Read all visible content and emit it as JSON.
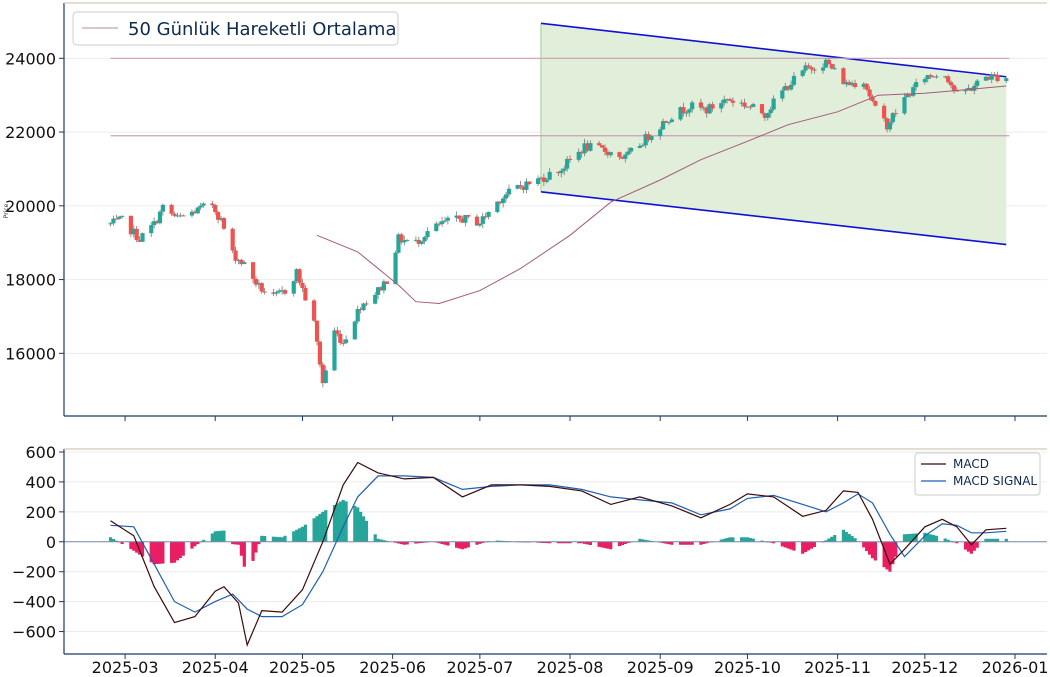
{
  "chart_data": [
    {
      "type": "candlestick",
      "ylabel": "Price",
      "ylim": [
        14300,
        25500
      ],
      "yticks": [
        16000,
        18000,
        20000,
        22000,
        24000
      ],
      "grid": true,
      "legend": {
        "position": "top-left",
        "entries": [
          "50 Günlük Hareketli Ortalama"
        ]
      },
      "colors": {
        "up": "#26a69a",
        "down": "#ef5350",
        "ma": "#a35a7a",
        "channel": "#1010d8",
        "channel_fill": "#e1efda",
        "hline": "#c9a0b4"
      },
      "horizontal_lines": [
        24000,
        21900
      ],
      "channel": {
        "upper": [
          [
            "2025-07-22",
            24950
          ],
          [
            "2025-12-29",
            23500
          ]
        ],
        "lower": [
          [
            "2025-07-22",
            20380
          ],
          [
            "2025-12-29",
            18950
          ]
        ]
      },
      "ohlc_anchors": [
        [
          "2025-02-24",
          19500
        ],
        [
          "2025-02-28",
          19600
        ],
        [
          "2025-03-06",
          19100
        ],
        [
          "2025-03-11",
          19500
        ],
        [
          "2025-03-14",
          19950
        ],
        [
          "2025-03-19",
          19650
        ],
        [
          "2025-03-25",
          19850
        ],
        [
          "2025-03-31",
          20050
        ],
        [
          "2025-04-03",
          19600
        ],
        [
          "2025-04-07",
          18700
        ],
        [
          "2025-04-11",
          18400
        ],
        [
          "2025-04-16",
          17800
        ],
        [
          "2025-04-21",
          17500
        ],
        [
          "2025-04-25",
          17700
        ],
        [
          "2025-04-29",
          18200
        ],
        [
          "2025-05-05",
          16800
        ],
        [
          "2025-05-08",
          15200
        ],
        [
          "2025-05-12",
          16600
        ],
        [
          "2025-05-15",
          16300
        ],
        [
          "2025-05-21",
          17300
        ],
        [
          "2025-05-27",
          17700
        ],
        [
          "2025-05-30",
          18000
        ],
        [
          "2025-06-03",
          19100
        ],
        [
          "2025-06-09",
          19000
        ],
        [
          "2025-06-13",
          19300
        ],
        [
          "2025-06-19",
          19550
        ],
        [
          "2025-06-25",
          19650
        ],
        [
          "2025-07-01",
          19550
        ],
        [
          "2025-07-08",
          20200
        ],
        [
          "2025-07-14",
          20500
        ],
        [
          "2025-07-21",
          20700
        ],
        [
          "2025-07-29",
          21000
        ],
        [
          "2025-08-06",
          21600
        ],
        [
          "2025-08-13",
          21500
        ],
        [
          "2025-08-20",
          21300
        ],
        [
          "2025-08-28",
          21900
        ],
        [
          "2025-09-04",
          22400
        ],
        [
          "2025-09-11",
          22700
        ],
        [
          "2025-09-17",
          22600
        ],
        [
          "2025-09-24",
          22900
        ],
        [
          "2025-09-30",
          22750
        ],
        [
          "2025-10-07",
          22500
        ],
        [
          "2025-10-14",
          23200
        ],
        [
          "2025-10-21",
          23700
        ],
        [
          "2025-10-28",
          23900
        ],
        [
          "2025-11-04",
          23300
        ],
        [
          "2025-11-10",
          23400
        ],
        [
          "2025-11-14",
          22600
        ],
        [
          "2025-11-18",
          22200
        ],
        [
          "2025-11-24",
          22900
        ],
        [
          "2025-12-01",
          23500
        ],
        [
          "2025-12-08",
          23600
        ],
        [
          "2025-12-12",
          23000
        ],
        [
          "2025-12-17",
          23200
        ],
        [
          "2025-12-22",
          23500
        ],
        [
          "2025-12-29",
          23500
        ]
      ],
      "ma50": [
        [
          "2025-05-06",
          19200
        ],
        [
          "2025-05-20",
          18750
        ],
        [
          "2025-06-03",
          17850
        ],
        [
          "2025-06-09",
          17400
        ],
        [
          "2025-06-17",
          17350
        ],
        [
          "2025-07-01",
          17700
        ],
        [
          "2025-07-15",
          18300
        ],
        [
          "2025-08-01",
          19200
        ],
        [
          "2025-08-15",
          20100
        ],
        [
          "2025-09-01",
          20700
        ],
        [
          "2025-09-15",
          21250
        ],
        [
          "2025-10-01",
          21750
        ],
        [
          "2025-10-15",
          22200
        ],
        [
          "2025-11-01",
          22550
        ],
        [
          "2025-11-15",
          23000
        ],
        [
          "2025-12-01",
          23050
        ],
        [
          "2025-12-15",
          23150
        ],
        [
          "2025-12-29",
          23250
        ]
      ]
    },
    {
      "type": "line",
      "ylim": [
        -750,
        620
      ],
      "yticks": [
        -600,
        -400,
        -200,
        0,
        200,
        400,
        600
      ],
      "grid": true,
      "legend": {
        "position": "top-right",
        "entries": [
          "MACD",
          "MACD SIGNAL"
        ]
      },
      "series": [
        {
          "name": "MACD",
          "color": "#3b0a0a",
          "points": [
            [
              "2025-02-24",
              140
            ],
            [
              "2025-03-04",
              40
            ],
            [
              "2025-03-11",
              -300
            ],
            [
              "2025-03-18",
              -540
            ],
            [
              "2025-03-25",
              -500
            ],
            [
              "2025-04-01",
              -330
            ],
            [
              "2025-04-04",
              -300
            ],
            [
              "2025-04-09",
              -410
            ],
            [
              "2025-04-12",
              -690
            ],
            [
              "2025-04-17",
              -460
            ],
            [
              "2025-04-24",
              -470
            ],
            [
              "2025-05-01",
              -320
            ],
            [
              "2025-05-08",
              0
            ],
            [
              "2025-05-15",
              380
            ],
            [
              "2025-05-20",
              530
            ],
            [
              "2025-05-27",
              460
            ],
            [
              "2025-06-05",
              420
            ],
            [
              "2025-06-15",
              430
            ],
            [
              "2025-06-25",
              300
            ],
            [
              "2025-07-05",
              380
            ],
            [
              "2025-07-15",
              380
            ],
            [
              "2025-07-25",
              370
            ],
            [
              "2025-08-05",
              340
            ],
            [
              "2025-08-15",
              250
            ],
            [
              "2025-08-25",
              300
            ],
            [
              "2025-09-05",
              240
            ],
            [
              "2025-09-15",
              160
            ],
            [
              "2025-09-25",
              250
            ],
            [
              "2025-10-01",
              320
            ],
            [
              "2025-10-10",
              300
            ],
            [
              "2025-10-20",
              170
            ],
            [
              "2025-10-28",
              210
            ],
            [
              "2025-11-03",
              340
            ],
            [
              "2025-11-08",
              330
            ],
            [
              "2025-11-13",
              150
            ],
            [
              "2025-11-19",
              -150
            ],
            [
              "2025-11-24",
              -50
            ],
            [
              "2025-12-01",
              100
            ],
            [
              "2025-12-07",
              150
            ],
            [
              "2025-12-12",
              100
            ],
            [
              "2025-12-17",
              -20
            ],
            [
              "2025-12-22",
              80
            ],
            [
              "2025-12-29",
              90
            ]
          ]
        },
        {
          "name": "MACD SIGNAL",
          "color": "#1f5fb4",
          "points": [
            [
              "2025-02-24",
              110
            ],
            [
              "2025-03-04",
              100
            ],
            [
              "2025-03-11",
              -150
            ],
            [
              "2025-03-18",
              -400
            ],
            [
              "2025-03-25",
              -470
            ],
            [
              "2025-04-01",
              -400
            ],
            [
              "2025-04-07",
              -350
            ],
            [
              "2025-04-12",
              -450
            ],
            [
              "2025-04-17",
              -500
            ],
            [
              "2025-04-24",
              -500
            ],
            [
              "2025-05-01",
              -420
            ],
            [
              "2025-05-08",
              -200
            ],
            [
              "2025-05-15",
              100
            ],
            [
              "2025-05-20",
              300
            ],
            [
              "2025-05-27",
              440
            ],
            [
              "2025-06-05",
              440
            ],
            [
              "2025-06-15",
              430
            ],
            [
              "2025-06-25",
              350
            ],
            [
              "2025-07-05",
              370
            ],
            [
              "2025-07-15",
              380
            ],
            [
              "2025-07-25",
              380
            ],
            [
              "2025-08-05",
              350
            ],
            [
              "2025-08-15",
              300
            ],
            [
              "2025-08-25",
              280
            ],
            [
              "2025-09-05",
              260
            ],
            [
              "2025-09-15",
              180
            ],
            [
              "2025-09-25",
              220
            ],
            [
              "2025-10-01",
              290
            ],
            [
              "2025-10-10",
              310
            ],
            [
              "2025-10-20",
              250
            ],
            [
              "2025-10-28",
              200
            ],
            [
              "2025-11-03",
              260
            ],
            [
              "2025-11-08",
              320
            ],
            [
              "2025-11-13",
              260
            ],
            [
              "2025-11-19",
              50
            ],
            [
              "2025-11-24",
              -100
            ],
            [
              "2025-12-01",
              40
            ],
            [
              "2025-12-07",
              120
            ],
            [
              "2025-12-12",
              110
            ],
            [
              "2025-12-17",
              60
            ],
            [
              "2025-12-22",
              60
            ],
            [
              "2025-12-29",
              70
            ]
          ]
        }
      ],
      "histogram": {
        "up_color": "#26a69a",
        "down_color": "#e91e63"
      }
    }
  ],
  "x_axis": {
    "range": [
      "2025-02-08",
      "2026-01-12"
    ],
    "ticks": [
      {
        "date": "2025-03-01",
        "label": "2025-03"
      },
      {
        "date": "2025-04-01",
        "label": "2025-04"
      },
      {
        "date": "2025-05-01",
        "label": "2025-05"
      },
      {
        "date": "2025-06-01",
        "label": "2025-06"
      },
      {
        "date": "2025-07-01",
        "label": "2025-07"
      },
      {
        "date": "2025-08-01",
        "label": "2025-08"
      },
      {
        "date": "2025-09-01",
        "label": "2025-09"
      },
      {
        "date": "2025-10-01",
        "label": "2025-10"
      },
      {
        "date": "2025-11-01",
        "label": "2025-11"
      },
      {
        "date": "2025-12-01",
        "label": "2025-12"
      },
      {
        "date": "2026-01-01",
        "label": "2026-01"
      }
    ]
  }
}
